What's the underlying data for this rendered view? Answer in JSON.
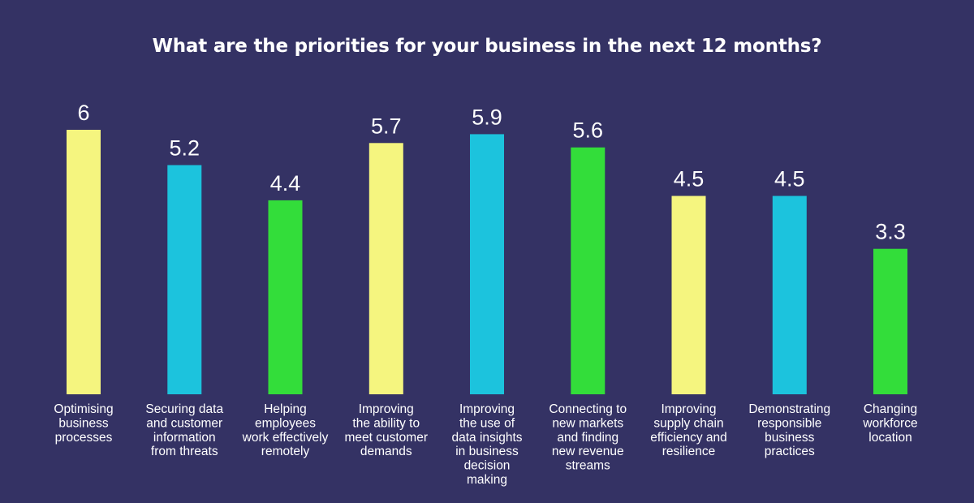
{
  "chart_data": {
    "type": "bar",
    "title": "What are the priorities for your business in the next 12 months?",
    "xlabel": "",
    "ylabel": "",
    "ylim": [
      0,
      6
    ],
    "grid": false,
    "legend": "none",
    "categories": [
      [
        "Optimising",
        "business",
        "processes"
      ],
      [
        "Securing data",
        "and customer",
        "information",
        "from threats"
      ],
      [
        "Helping",
        "employees",
        "work effectively",
        "remotely"
      ],
      [
        "Improving",
        "the ability to",
        "meet customer",
        "demands"
      ],
      [
        "Improving",
        "the use of",
        "data insights",
        "in business",
        "decision",
        "making"
      ],
      [
        "Connecting to",
        "new markets",
        "and finding",
        "new revenue",
        "streams"
      ],
      [
        "Improving",
        "supply chain",
        "efficiency and",
        "resilience"
      ],
      [
        "Demonstrating",
        "responsible",
        "business",
        "practices"
      ],
      [
        "Changing",
        "workforce",
        "location"
      ]
    ],
    "values": [
      6,
      5.2,
      4.4,
      5.7,
      5.9,
      5.6,
      4.5,
      4.5,
      3.3
    ],
    "value_labels": [
      "6",
      "5.2",
      "4.4",
      "5.7",
      "5.9",
      "5.6",
      "4.5",
      "4.5",
      "3.3"
    ],
    "colors": [
      "#f5f57f",
      "#1cc3dd",
      "#33dd3a",
      "#f5f57f",
      "#1cc3dd",
      "#33dd3a",
      "#f5f57f",
      "#1cc3dd",
      "#33dd3a"
    ],
    "background": "#343264"
  }
}
